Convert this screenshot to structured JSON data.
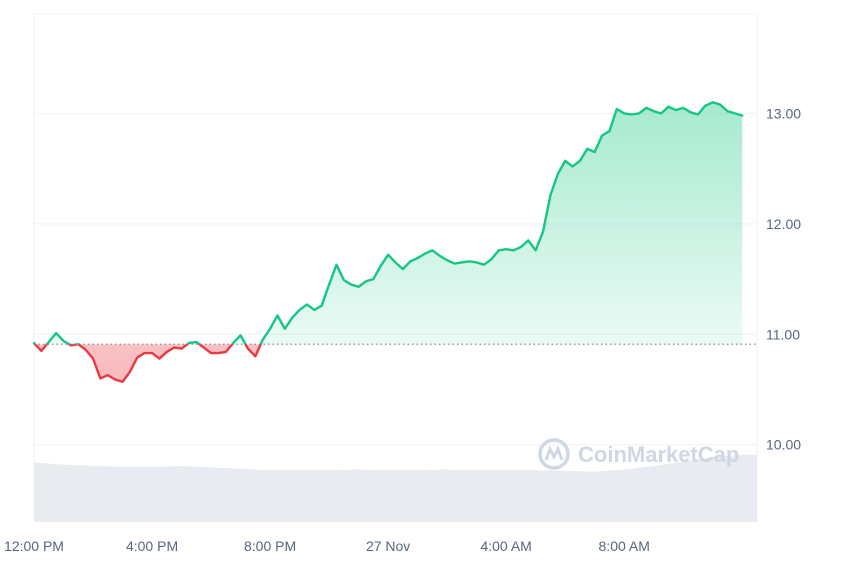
{
  "chart_data": {
    "type": "area",
    "title": "",
    "xlabel": "",
    "ylabel": "",
    "x_ticks": [
      "12:00 PM",
      "4:00 PM",
      "8:00 PM",
      "27 Nov",
      "4:00 AM",
      "8:00 AM"
    ],
    "y_ticks": [
      "10.00",
      "11.00",
      "12.00",
      "13.00"
    ],
    "ylim": [
      9.3,
      13.9
    ],
    "baseline": 10.91,
    "grid": "horizontal",
    "y_axis_position": "right",
    "colors": {
      "above": "#16c784",
      "below": "#ea3943",
      "above_fill": "#16c784",
      "below_fill": "#ea3943",
      "grid": "#eff2f5",
      "baseline_dotted": "#7a7f87",
      "volume": "#e8ebef",
      "axis_text": "#58667e",
      "watermark": "#cfd6e4"
    },
    "series": [
      {
        "x_hours": [
          0.0,
          0.25,
          0.5,
          0.75,
          1.0,
          1.25,
          1.5,
          1.75,
          2.0,
          2.25,
          2.5,
          2.75,
          3.0,
          3.25,
          3.5,
          3.75,
          4.0,
          4.25,
          4.5,
          4.75,
          5.0,
          5.25,
          5.5,
          5.75,
          6.0,
          6.25,
          6.5,
          6.75,
          7.0,
          7.25,
          7.5,
          7.75,
          8.0,
          8.25,
          8.5,
          8.75,
          9.0,
          9.25,
          9.5,
          9.75,
          10.0,
          10.25,
          10.5,
          10.75,
          11.0,
          11.25,
          11.5,
          11.75,
          12.0,
          12.25,
          12.5,
          12.75,
          13.0,
          13.25,
          13.5,
          13.75,
          14.0,
          14.25,
          14.5,
          14.75,
          15.0,
          15.25,
          15.5,
          15.75,
          16.0,
          16.25,
          16.5,
          16.75,
          17.0,
          17.25,
          17.5,
          17.75,
          18.0,
          18.25,
          18.5,
          18.75,
          19.0,
          19.25,
          19.5,
          19.75,
          20.0,
          20.25,
          20.5,
          20.75,
          21.0,
          21.25,
          21.5,
          21.75,
          22.0,
          22.25,
          22.5,
          22.75,
          23.0,
          23.25,
          23.5,
          23.75,
          24.0
        ],
        "values": [
          10.92,
          10.85,
          10.93,
          11.01,
          10.94,
          10.9,
          10.91,
          10.86,
          10.78,
          10.6,
          10.63,
          10.59,
          10.57,
          10.66,
          10.79,
          10.83,
          10.83,
          10.78,
          10.84,
          10.88,
          10.87,
          10.92,
          10.93,
          10.88,
          10.83,
          10.83,
          10.84,
          10.92,
          10.99,
          10.87,
          10.8,
          10.95,
          11.05,
          11.17,
          11.05,
          11.15,
          11.22,
          11.27,
          11.22,
          11.26,
          11.45,
          11.63,
          11.49,
          11.45,
          11.43,
          11.48,
          11.5,
          11.62,
          11.72,
          11.65,
          11.59,
          11.66,
          11.69,
          11.73,
          11.76,
          11.71,
          11.67,
          11.64,
          11.65,
          11.66,
          11.65,
          11.63,
          11.68,
          11.76,
          11.77,
          11.76,
          11.79,
          11.85,
          11.76,
          11.93,
          12.26,
          12.45,
          12.57,
          12.52,
          12.57,
          12.68,
          12.65,
          12.8,
          12.84,
          13.04,
          13.0,
          12.99,
          13.0,
          13.05,
          13.02,
          13.0,
          13.06,
          13.03,
          13.05,
          13.01,
          12.99,
          13.07,
          13.1,
          13.08,
          13.02,
          13.0,
          12.98
        ]
      }
    ],
    "volume_series": {
      "x_hours": [
        0,
        1,
        2,
        3,
        4,
        5,
        6,
        7,
        8,
        9,
        10,
        11,
        12,
        13,
        14,
        15,
        16,
        17,
        18,
        19,
        20,
        21,
        22,
        23,
        24
      ],
      "values": [
        0.85,
        0.82,
        0.8,
        0.79,
        0.79,
        0.8,
        0.78,
        0.76,
        0.74,
        0.74,
        0.74,
        0.75,
        0.74,
        0.74,
        0.75,
        0.74,
        0.74,
        0.74,
        0.73,
        0.72,
        0.75,
        0.8,
        0.86,
        0.93,
        0.96
      ]
    }
  },
  "watermark": {
    "text": "CoinMarketCap",
    "icon": "coinmarketcap-logo-icon"
  }
}
